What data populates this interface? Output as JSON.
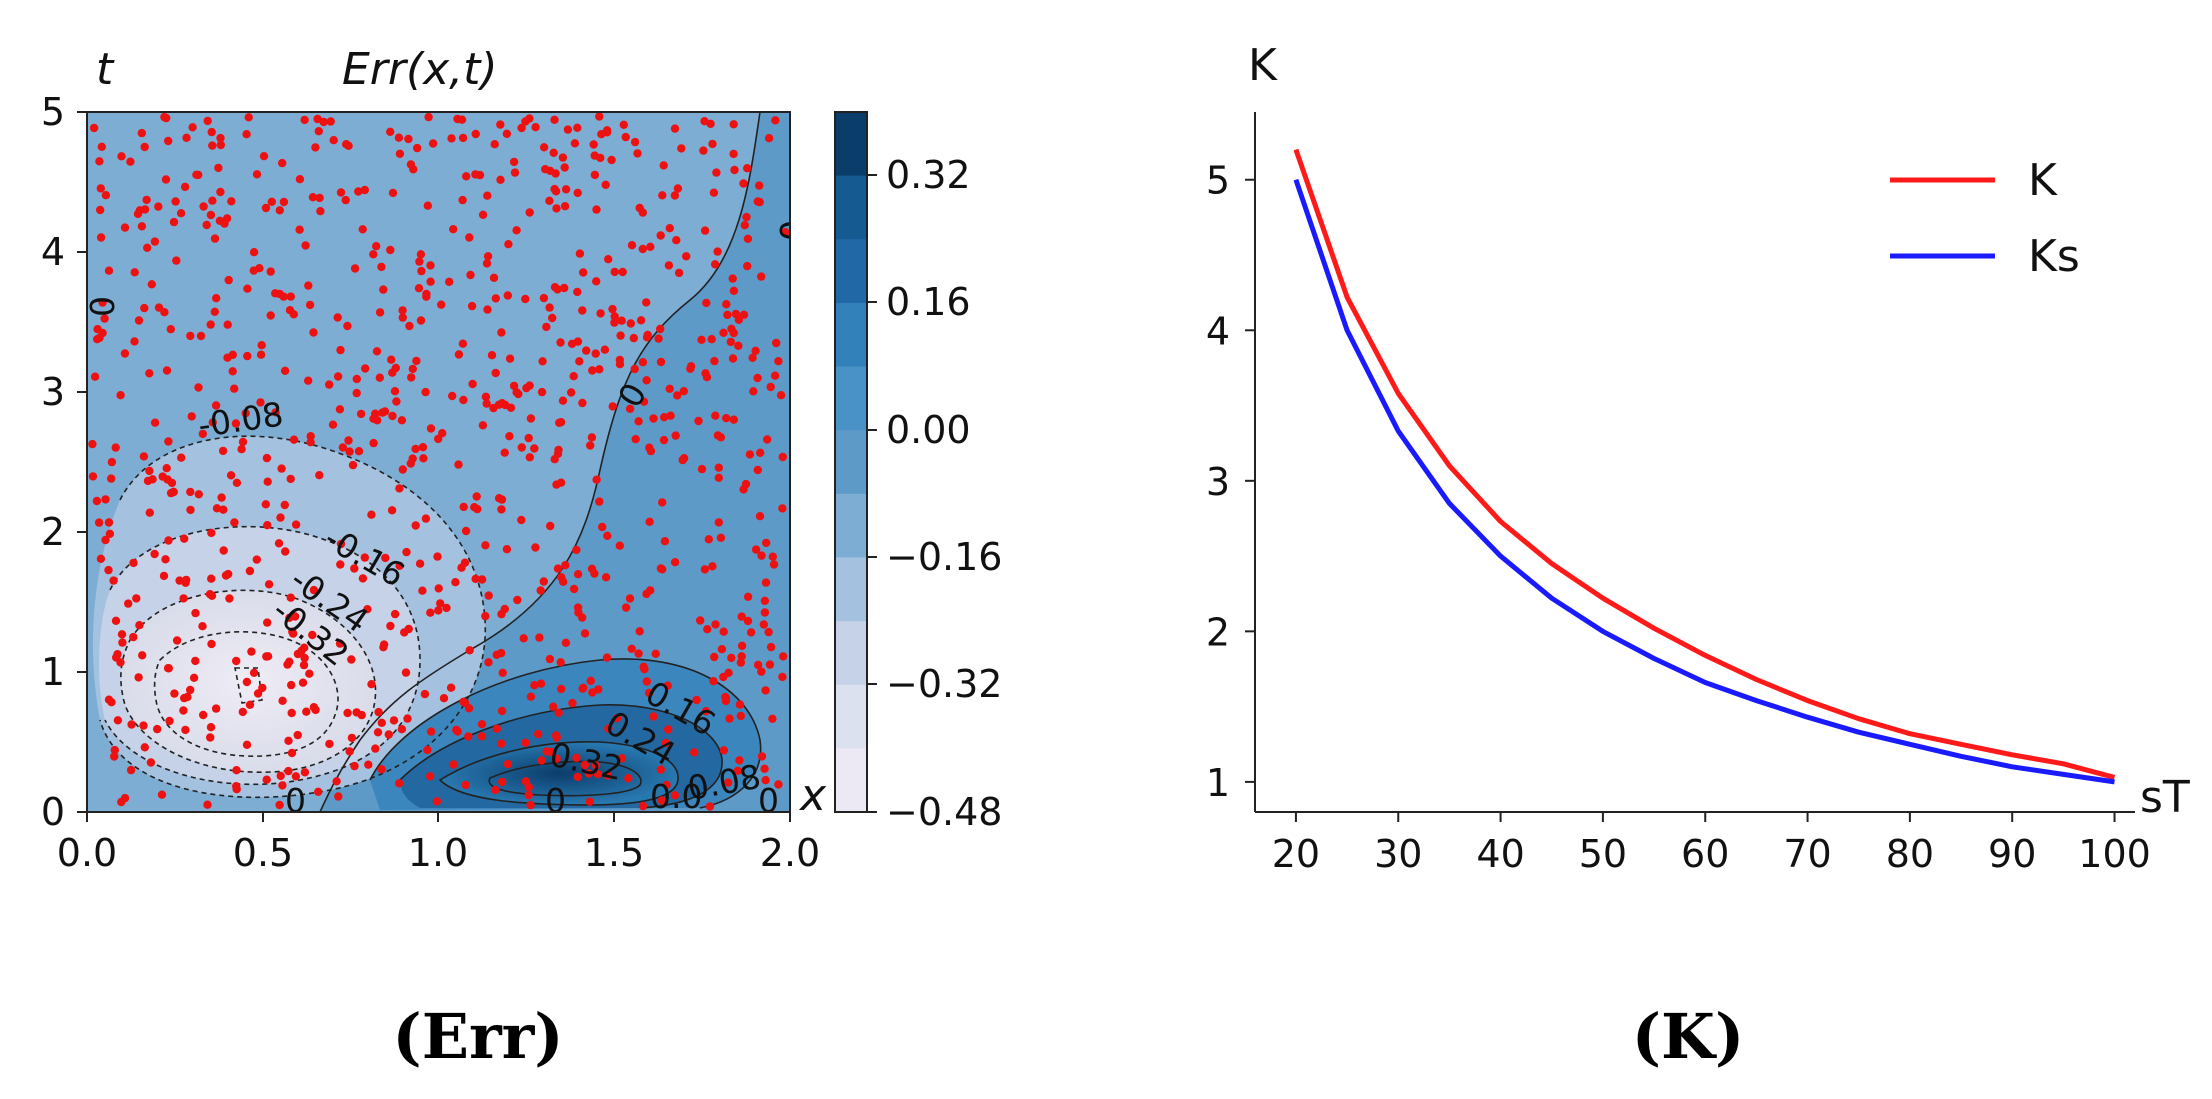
{
  "chart_data": [
    {
      "type": "heatmap",
      "title": "Err(x,t)",
      "xlabel": "x",
      "ylabel": "t",
      "xlim": [
        0,
        2
      ],
      "ylim": [
        0,
        5
      ],
      "x_ticks": [
        "0.0",
        "0.5",
        "1.0",
        "1.5",
        "2.0"
      ],
      "y_ticks": [
        "0",
        "1",
        "2",
        "3",
        "4",
        "5"
      ],
      "colorbar": {
        "ticks": [
          "0.32",
          "0.16",
          "0.00",
          "−0.16",
          "−0.32",
          "−0.48"
        ],
        "range": [
          -0.48,
          0.4
        ],
        "levels": 11
      },
      "contour_labels": [
        "-0.08",
        "-0.16",
        "-0.24",
        "-0.32",
        "0",
        "0.16",
        "0.24",
        "0.32",
        "0.08",
        "0.0",
        "0",
        "0",
        "0",
        "0",
        "0"
      ],
      "scatter": {
        "color": "#ee1111",
        "count": 900,
        "marker": "dot"
      },
      "caption": "(Err)"
    },
    {
      "type": "line",
      "xlabel": "sT",
      "ylabel": "K",
      "xlim": [
        16,
        102
      ],
      "ylim": [
        0.8,
        5.45
      ],
      "x_ticks": [
        "20",
        "30",
        "40",
        "50",
        "60",
        "70",
        "80",
        "90",
        "100"
      ],
      "y_ticks": [
        "1",
        "2",
        "3",
        "4",
        "5"
      ],
      "x": [
        20,
        25,
        30,
        35,
        40,
        45,
        50,
        55,
        60,
        65,
        70,
        75,
        80,
        85,
        90,
        95,
        100
      ],
      "series": [
        {
          "name": "K",
          "color": "#ff1a1a",
          "values": [
            5.2,
            4.22,
            3.58,
            3.1,
            2.73,
            2.45,
            2.22,
            2.02,
            1.84,
            1.68,
            1.54,
            1.42,
            1.32,
            1.25,
            1.18,
            1.12,
            1.03
          ]
        },
        {
          "name": "Ks",
          "color": "#1a1aff",
          "values": [
            5.0,
            4.0,
            3.33,
            2.85,
            2.5,
            2.22,
            2.0,
            1.82,
            1.66,
            1.54,
            1.43,
            1.33,
            1.25,
            1.17,
            1.1,
            1.05,
            1.0
          ]
        }
      ],
      "legend": "top-right",
      "caption": "(K)"
    }
  ]
}
